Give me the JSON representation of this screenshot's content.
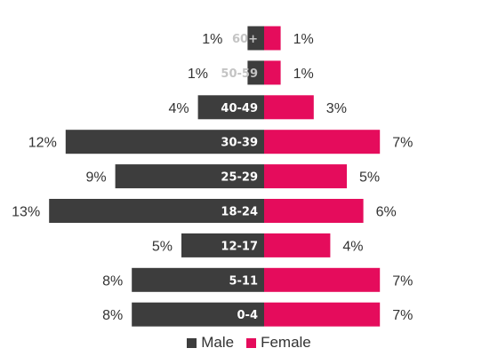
{
  "chart_data": {
    "type": "bar",
    "categories": [
      "60+",
      "50-59",
      "40-49",
      "30-39",
      "25-29",
      "18-24",
      "12-17",
      "5-11",
      "0-4"
    ],
    "series": [
      {
        "name": "Male",
        "values": [
          1,
          1,
          4,
          12,
          9,
          13,
          5,
          8,
          8
        ],
        "labels": [
          "1%",
          "1%",
          "4%",
          "12%",
          "9%",
          "13%",
          "5%",
          "8%",
          "8%"
        ]
      },
      {
        "name": "Female",
        "values": [
          1,
          1,
          3,
          7,
          5,
          6,
          4,
          7,
          7
        ],
        "labels": [
          "1%",
          "1%",
          "3%",
          "7%",
          "5%",
          "6%",
          "4%",
          "7%",
          "7%"
        ]
      }
    ],
    "colors": {
      "Male": "#3d3d3d",
      "Female": "#e50c5c"
    },
    "legend_position": "bottom",
    "grid": false
  }
}
